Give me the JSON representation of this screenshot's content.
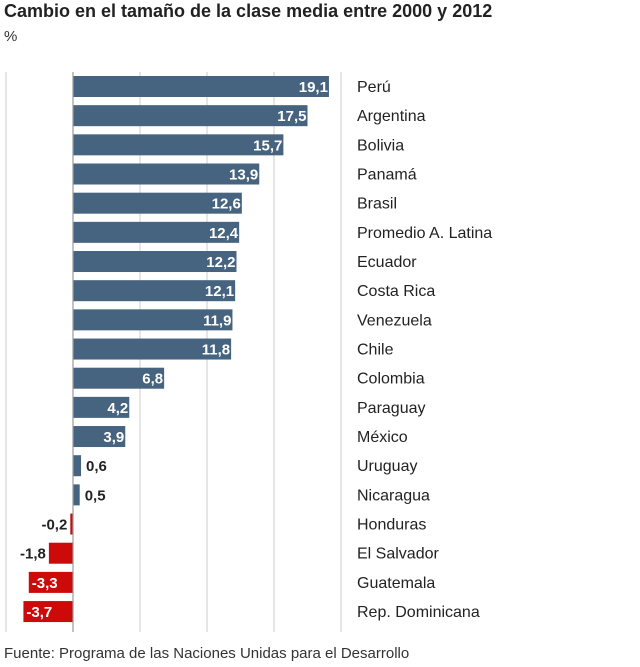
{
  "title": "Cambio en el tamaño de la clase media entre 2000 y 2012",
  "unit": "%",
  "source": "Fuente: Programa de las Naciones Unidas para el Desarrollo",
  "colors": {
    "positive": "#46637f",
    "negative": "#cc0a0a",
    "grid": "#cccccc",
    "zero_line": "#999999"
  },
  "chart_data": {
    "type": "bar",
    "orientation": "horizontal",
    "title": "Cambio en el tamaño de la clase media entre 2000 y 2012",
    "ylabel": "%",
    "xlim": [
      -5,
      20
    ],
    "grid": true,
    "categories": [
      "Perú",
      "Argentina",
      "Bolivia",
      "Panamá",
      "Brasil",
      "Promedio A. Latina",
      "Ecuador",
      "Costa Rica",
      "Venezuela",
      "Chile",
      "Colombia",
      "Paraguay",
      "México",
      "Uruguay",
      "Nicaragua",
      "Honduras",
      "El Salvador",
      "Guatemala",
      "Rep. Dominicana"
    ],
    "values": [
      19.1,
      17.5,
      15.7,
      13.9,
      12.6,
      12.4,
      12.2,
      12.1,
      11.9,
      11.8,
      6.8,
      4.2,
      3.9,
      0.6,
      0.5,
      -0.2,
      -1.8,
      -3.3,
      -3.7
    ],
    "value_labels": [
      "19,1",
      "17,5",
      "15,7",
      "13,9",
      "12,6",
      "12,4",
      "12,2",
      "12,1",
      "11,9",
      "11,8",
      "6,8",
      "4,2",
      "3,9",
      "0,6",
      "0,5",
      "-0,2",
      "-1,8",
      "-3,3",
      "-3,7"
    ]
  }
}
